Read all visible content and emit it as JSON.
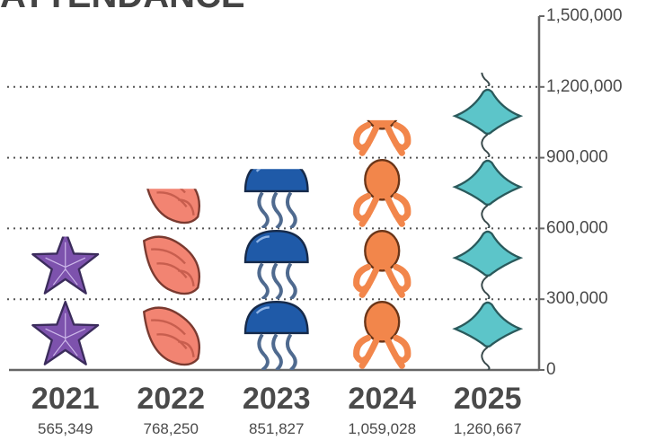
{
  "chart_data": {
    "type": "pictograph",
    "title": "ATTENDANCE",
    "categories": [
      "2021",
      "2022",
      "2023",
      "2024",
      "2025"
    ],
    "values": [
      565349,
      768250,
      851827,
      1059028,
      1260667
    ],
    "value_labels": [
      "565,349",
      "768,250",
      "851,827",
      "1,059,028",
      "1,260,667"
    ],
    "colors": [
      "#7d52ad",
      "#f28472",
      "#1f5aa8",
      "#f2864b",
      "#5cc5c9"
    ],
    "ylim": [
      0,
      1500000
    ],
    "yticks": [
      0,
      {
        "value": 300000,
        "label": "300,000"
      },
      {
        "value": 600000,
        "label": "600,000"
      },
      {
        "value": 900000,
        "label": "900,000"
      },
      {
        "value": 1200000,
        "label": "1,200,000"
      },
      {
        "value": 1500000,
        "label": "1,500,000"
      }
    ],
    "grid": true
  }
}
